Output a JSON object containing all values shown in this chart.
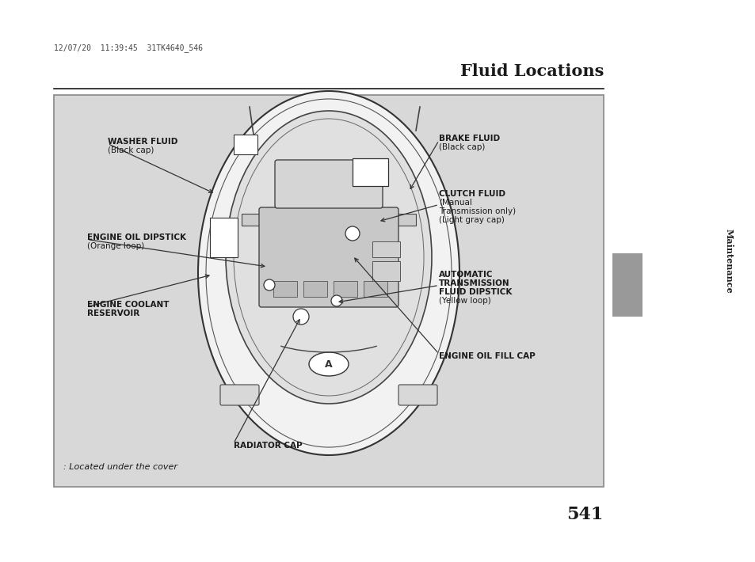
{
  "page_bg": "#ffffff",
  "header_text": "12/07/20  11:39:45  31TK4640_546",
  "title": "Fluid Locations",
  "page_number": "541",
  "sidebar_label": "Maintenance",
  "sidebar_color": "#999999",
  "diagram_bg": "#d8d8d8",
  "diagram_border": "#888888",
  "footer_note": ": Located under the cover",
  "car_fill": "#e8e8e8",
  "car_edge": "#333333",
  "inner_fill": "#f0f0f0",
  "engine_fill": "#d0d0d0"
}
